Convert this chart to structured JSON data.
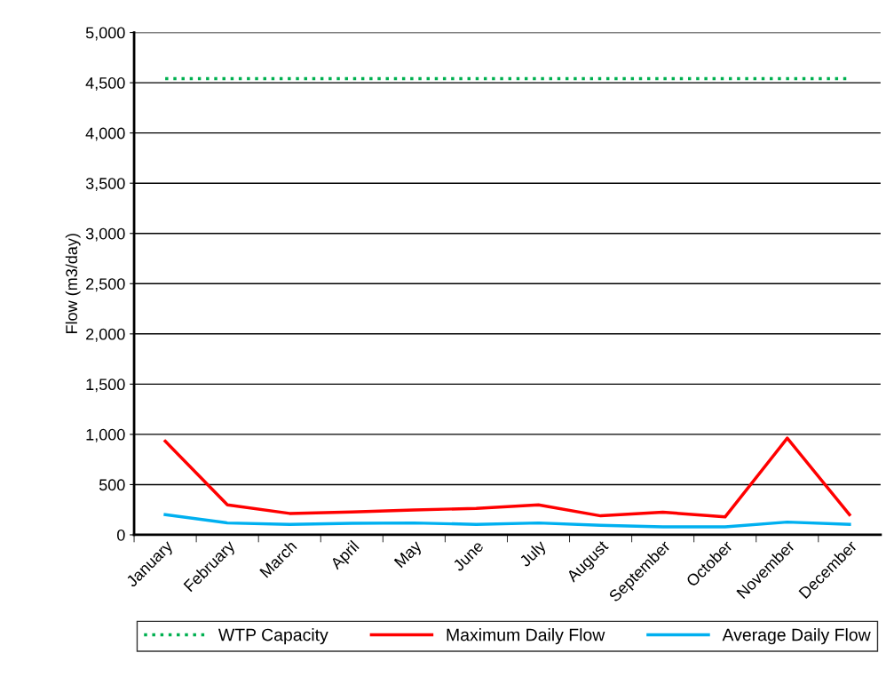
{
  "chart_data": {
    "type": "line",
    "ylabel": "Flow (m3/day)",
    "categories": [
      "January",
      "February",
      "March",
      "April",
      "May",
      "June",
      "July",
      "August",
      "September",
      "October",
      "November",
      "December"
    ],
    "series": [
      {
        "name": "WTP Capacity",
        "color": "#00b050",
        "line_style": "dotted",
        "values": [
          4540,
          4540,
          4540,
          4540,
          4540,
          4540,
          4540,
          4540,
          4540,
          4540,
          4540,
          4540
        ]
      },
      {
        "name": "Maximum Daily Flow",
        "color": "#ff0000",
        "line_style": "solid",
        "values": [
          932,
          299,
          213,
          228,
          248,
          263,
          299,
          189,
          225,
          178,
          962,
          201
        ]
      },
      {
        "name": "Average Daily Flow",
        "color": "#00b0f0",
        "line_style": "solid",
        "values": [
          201,
          118,
          104,
          115,
          118,
          104,
          118,
          95,
          80,
          80,
          127,
          104
        ]
      }
    ],
    "ylim": [
      0,
      5000
    ],
    "yticks": [
      {
        "value": 0,
        "label": "0"
      },
      {
        "value": 500,
        "label": "500"
      },
      {
        "value": 1000,
        "label": "1,000"
      },
      {
        "value": 1500,
        "label": "1,500"
      },
      {
        "value": 2000,
        "label": "2,000"
      },
      {
        "value": 2500,
        "label": "2,500"
      },
      {
        "value": 3000,
        "label": "3,000"
      },
      {
        "value": 3500,
        "label": "3,500"
      },
      {
        "value": 4000,
        "label": "4,000"
      },
      {
        "value": 4500,
        "label": "4,500"
      },
      {
        "value": 5000,
        "label": "5,000"
      }
    ],
    "grid": "y",
    "legend": "bottom",
    "marker": "none"
  }
}
